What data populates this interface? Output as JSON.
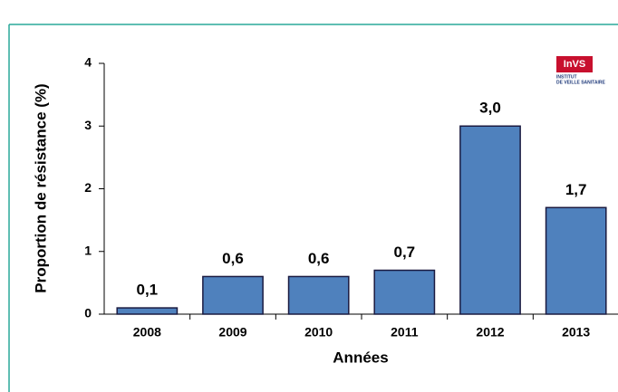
{
  "chart_data": {
    "type": "bar",
    "x_label": "Années",
    "y_label": "Proportion de résistance (%)",
    "categories": [
      "2008",
      "2009",
      "2010",
      "2011",
      "2012",
      "2013"
    ],
    "values": [
      0.1,
      0.6,
      0.6,
      0.7,
      3.0,
      1.7
    ],
    "value_labels": [
      "0,1",
      "0,6",
      "0,6",
      "0,7",
      "3,0",
      "1,7"
    ],
    "color": "#4f81bd",
    "ylim": [
      0,
      4
    ],
    "yticks": [
      0,
      1,
      2,
      3,
      4
    ],
    "grid": false,
    "logo": {
      "name": "InVS",
      "line1": "INSTITUT",
      "line2": "DE VEILLE SANITAIRE"
    }
  }
}
